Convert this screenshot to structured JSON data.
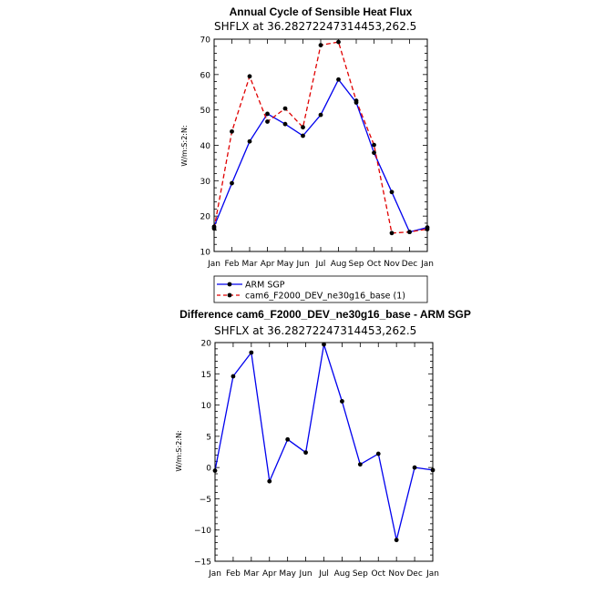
{
  "chart_data": [
    {
      "type": "line",
      "title": "Annual Cycle of Sensible Heat Flux",
      "subtitle": "SHFLX at 36.28272247314453,262.5",
      "ylabel": "W/m:S:2:N:",
      "xlabel": "",
      "categories": [
        "Jan",
        "Feb",
        "Mar",
        "Apr",
        "May",
        "Jun",
        "Jul",
        "Aug",
        "Sep",
        "Oct",
        "Nov",
        "Dec",
        "Jan"
      ],
      "ylim": [
        10,
        70
      ],
      "yticks": [
        10,
        20,
        30,
        40,
        50,
        60,
        70
      ],
      "legend_position": "below",
      "series": [
        {
          "name": "ARM SGP",
          "color": "#0000ee",
          "dash": "solid",
          "values": [
            17.0,
            29.3,
            41.1,
            48.9,
            46.0,
            42.7,
            48.6,
            58.6,
            52.1,
            37.9,
            26.8,
            15.5,
            16.8
          ]
        },
        {
          "name": "cam6_F2000_DEV_ne30g16_base (1)",
          "color": "#e00000",
          "dash": "dashed",
          "values": [
            16.5,
            43.9,
            59.5,
            46.7,
            50.4,
            45.1,
            68.3,
            69.2,
            52.6,
            40.1,
            15.2,
            15.5,
            16.3
          ]
        }
      ]
    },
    {
      "type": "line",
      "title": "Difference cam6_F2000_DEV_ne30g16_base - ARM SGP",
      "subtitle": "SHFLX at 36.28272247314453,262.5",
      "ylabel": "W/m:S:2:N:",
      "xlabel": "",
      "categories": [
        "Jan",
        "Feb",
        "Mar",
        "Apr",
        "May",
        "Jun",
        "Jul",
        "Aug",
        "Sep",
        "Oct",
        "Nov",
        "Dec",
        "Jan"
      ],
      "ylim": [
        -15,
        20
      ],
      "yticks": [
        -15,
        -10,
        -5,
        0,
        5,
        10,
        15,
        20
      ],
      "series": [
        {
          "name": "",
          "color": "#0000ee",
          "dash": "solid",
          "values": [
            -0.5,
            14.6,
            18.4,
            -2.2,
            4.5,
            2.4,
            19.7,
            10.6,
            0.5,
            2.2,
            -11.6,
            0.0,
            -0.4
          ]
        }
      ]
    }
  ]
}
